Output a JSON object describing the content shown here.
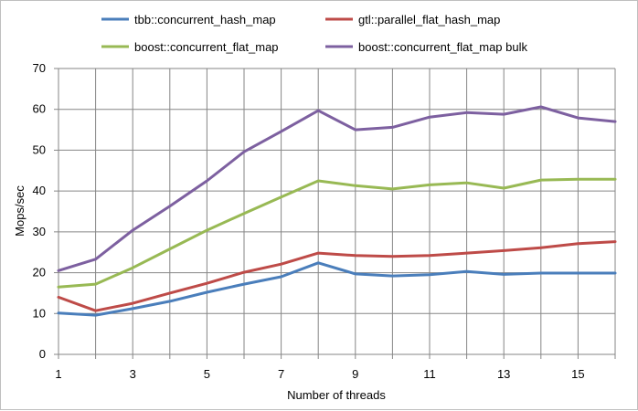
{
  "chart_data": {
    "type": "line",
    "title": "",
    "xlabel": "Number of threads",
    "ylabel": "Mops/sec",
    "x": [
      1,
      2,
      3,
      4,
      5,
      6,
      7,
      8,
      9,
      10,
      11,
      12,
      13,
      14,
      15,
      16
    ],
    "x_tick_labels": [
      "1",
      "3",
      "5",
      "7",
      "9",
      "11",
      "13",
      "15"
    ],
    "y_tick_labels": [
      "0",
      "10",
      "20",
      "30",
      "40",
      "50",
      "60",
      "70"
    ],
    "xlim": [
      1,
      16
    ],
    "ylim": [
      0,
      70
    ],
    "grid": true,
    "legend_position": "top",
    "series": [
      {
        "name": "tbb::concurrent_hash_map",
        "color": "#4a7ebb",
        "values": [
          10.1,
          9.6,
          11.2,
          13.0,
          15.2,
          17.2,
          19.0,
          22.4,
          19.7,
          19.2,
          19.5,
          20.3,
          19.6,
          19.9,
          19.9,
          19.9
        ]
      },
      {
        "name": "gtl::parallel_flat_hash_map",
        "color": "#be4b48",
        "values": [
          14.0,
          10.7,
          12.5,
          15.0,
          17.4,
          20.1,
          22.1,
          24.8,
          24.2,
          24.0,
          24.2,
          24.8,
          25.4,
          26.1,
          27.1,
          27.6
        ]
      },
      {
        "name": "boost::concurrent_flat_map",
        "color": "#98b954",
        "values": [
          16.5,
          17.2,
          21.2,
          25.8,
          30.4,
          34.5,
          38.5,
          42.5,
          41.3,
          40.5,
          41.5,
          42.0,
          40.7,
          42.7,
          42.9,
          42.9
        ]
      },
      {
        "name": "boost::concurrent_flat_map bulk",
        "color": "#7d60a0",
        "values": [
          20.5,
          23.3,
          30.4,
          36.3,
          42.5,
          49.6,
          54.6,
          59.7,
          55.0,
          55.6,
          58.1,
          59.2,
          58.8,
          60.6,
          57.9,
          57.0
        ]
      }
    ]
  }
}
